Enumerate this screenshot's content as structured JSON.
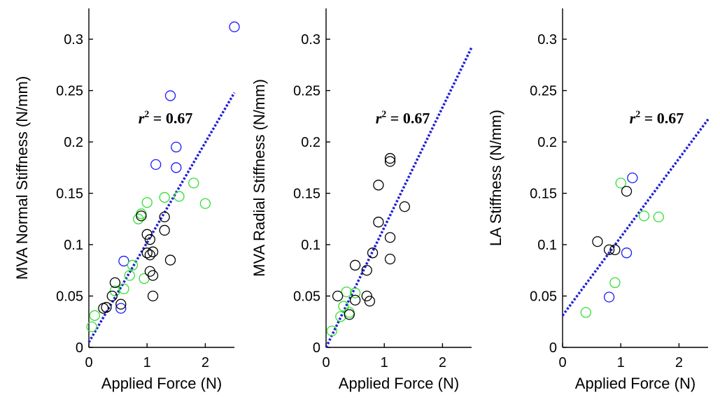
{
  "colors": {
    "blue": "#1a1aff",
    "green": "#33dd33",
    "black": "#000000",
    "fit": "#1f1fd6"
  },
  "chart_data": [
    {
      "type": "scatter",
      "xlabel": "Applied Force (N)",
      "ylabel": "MVA Normal Stiffness (N/mm)",
      "xlim": [
        0,
        2.5
      ],
      "ylim": [
        0,
        0.33
      ],
      "xticks": [
        0,
        1,
        2
      ],
      "xtick_labels": [
        "0",
        "1",
        "2"
      ],
      "yticks": [
        0,
        0.05,
        0.1,
        0.15,
        0.2,
        0.25,
        0.3
      ],
      "ytick_labels": [
        "0",
        "0.05",
        "0.1",
        "0.15",
        "0.2",
        "0.25",
        "0.3"
      ],
      "annotation": {
        "prefix": "r",
        "sup": "2",
        "suffix": " = 0.67",
        "x": 0.85,
        "y": 0.218
      },
      "fit_line": {
        "x": [
          0,
          2.5
        ],
        "y": [
          0.005,
          0.248
        ]
      },
      "series": [
        {
          "color": "blue",
          "points": [
            [
              2.5,
              0.312
            ],
            [
              1.4,
              0.245
            ],
            [
              1.5,
              0.195
            ],
            [
              1.5,
              0.175
            ],
            [
              1.15,
              0.178
            ],
            [
              0.6,
              0.084
            ],
            [
              0.55,
              0.038
            ]
          ]
        },
        {
          "color": "green",
          "points": [
            [
              1.8,
              0.16
            ],
            [
              2.0,
              0.14
            ],
            [
              1.55,
              0.147
            ],
            [
              1.3,
              0.146
            ],
            [
              1.0,
              0.141
            ],
            [
              0.9,
              0.13
            ],
            [
              0.85,
              0.125
            ],
            [
              0.95,
              0.067
            ],
            [
              0.7,
              0.07
            ],
            [
              0.75,
              0.08
            ],
            [
              0.6,
              0.057
            ],
            [
              0.45,
              0.055
            ],
            [
              0.1,
              0.031
            ],
            [
              0.05,
              0.02
            ]
          ]
        },
        {
          "color": "black",
          "points": [
            [
              0.9,
              0.128
            ],
            [
              1.3,
              0.127
            ],
            [
              1.3,
              0.114
            ],
            [
              1.0,
              0.11
            ],
            [
              1.05,
              0.105
            ],
            [
              1.0,
              0.092
            ],
            [
              1.1,
              0.093
            ],
            [
              1.05,
              0.09
            ],
            [
              1.4,
              0.085
            ],
            [
              1.05,
              0.074
            ],
            [
              1.1,
              0.07
            ],
            [
              1.1,
              0.05
            ],
            [
              0.45,
              0.063
            ],
            [
              0.4,
              0.05
            ],
            [
              0.55,
              0.042
            ],
            [
              0.3,
              0.039
            ],
            [
              0.25,
              0.038
            ]
          ]
        }
      ]
    },
    {
      "type": "scatter",
      "xlabel": "Applied Force (N)",
      "ylabel": "MVA Radial Stiffness (N/mm)",
      "xlim": [
        0,
        2.5
      ],
      "ylim": [
        0,
        0.33
      ],
      "xticks": [
        0,
        1,
        2
      ],
      "xtick_labels": [
        "0",
        "1",
        "2"
      ],
      "yticks": [
        0,
        0.05,
        0.1,
        0.15,
        0.2,
        0.25,
        0.3
      ],
      "ytick_labels": [
        "0",
        "0.05",
        "0.1",
        "0.15",
        "0.2",
        "0.25",
        "0.3"
      ],
      "annotation": {
        "prefix": "r",
        "sup": "2",
        "suffix": " = 0.67",
        "x": 0.85,
        "y": 0.218
      },
      "fit_line": {
        "x": [
          0,
          2.5
        ],
        "y": [
          0.0,
          0.292
        ]
      },
      "series": [
        {
          "color": "green",
          "points": [
            [
              0.35,
              0.054
            ],
            [
              0.5,
              0.053
            ],
            [
              0.3,
              0.04
            ],
            [
              0.4,
              0.034
            ],
            [
              0.25,
              0.03
            ],
            [
              0.1,
              0.016
            ]
          ]
        },
        {
          "color": "black",
          "points": [
            [
              1.1,
              0.184
            ],
            [
              1.1,
              0.181
            ],
            [
              0.9,
              0.158
            ],
            [
              1.35,
              0.137
            ],
            [
              0.9,
              0.122
            ],
            [
              1.1,
              0.107
            ],
            [
              0.8,
              0.092
            ],
            [
              1.1,
              0.086
            ],
            [
              0.5,
              0.08
            ],
            [
              0.7,
              0.075
            ],
            [
              0.7,
              0.05
            ],
            [
              0.75,
              0.045
            ],
            [
              0.5,
              0.046
            ],
            [
              0.2,
              0.05
            ],
            [
              0.4,
              0.032
            ]
          ]
        }
      ]
    },
    {
      "type": "scatter",
      "xlabel": "Applied Force (N)",
      "ylabel": "LA Stiffness (N/mm)",
      "xlim": [
        0,
        2.5
      ],
      "ylim": [
        0,
        0.33
      ],
      "xticks": [
        0,
        1,
        2
      ],
      "xtick_labels": [
        "0",
        "1",
        "2"
      ],
      "yticks": [
        0,
        0.05,
        0.1,
        0.15,
        0.2,
        0.25,
        0.3
      ],
      "ytick_labels": [
        "0",
        "0.05",
        "0.1",
        "0.15",
        "0.2",
        "0.25",
        "0.3"
      ],
      "annotation": {
        "prefix": "r",
        "sup": "2",
        "suffix": " = 0.67",
        "x": 1.15,
        "y": 0.218
      },
      "fit_line": {
        "x": [
          0,
          2.5
        ],
        "y": [
          0.031,
          0.222
        ]
      },
      "series": [
        {
          "color": "blue",
          "points": [
            [
              1.2,
              0.165
            ],
            [
              1.1,
              0.092
            ],
            [
              0.8,
              0.049
            ]
          ]
        },
        {
          "color": "green",
          "points": [
            [
              1.0,
              0.16
            ],
            [
              1.4,
              0.128
            ],
            [
              1.65,
              0.127
            ],
            [
              0.9,
              0.063
            ],
            [
              0.4,
              0.034
            ]
          ]
        },
        {
          "color": "black",
          "points": [
            [
              1.1,
              0.152
            ],
            [
              0.6,
              0.103
            ],
            [
              0.8,
              0.095
            ],
            [
              0.9,
              0.095
            ]
          ]
        }
      ]
    }
  ]
}
